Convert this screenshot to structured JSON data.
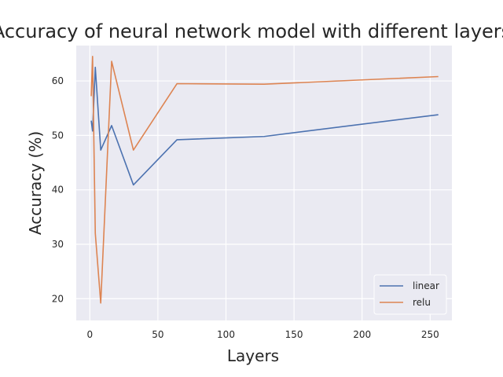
{
  "chart_data": {
    "type": "line",
    "title": "Accuracy of neural network model with different layers",
    "xlabel": "Layers",
    "ylabel": "Accuracy (%)",
    "xlim": [
      -10,
      266
    ],
    "ylim": [
      16,
      66.5
    ],
    "xticks": [
      0,
      50,
      100,
      150,
      200,
      250
    ],
    "yticks": [
      20,
      30,
      40,
      50,
      60
    ],
    "grid": true,
    "legend_position": "lower-right",
    "series": [
      {
        "name": "linear",
        "color": "#4c72b0",
        "x": [
          1,
          2,
          4,
          8,
          16,
          32,
          64,
          128,
          256
        ],
        "y": [
          52.7,
          50.8,
          62.5,
          47.3,
          51.8,
          40.9,
          49.2,
          49.8,
          53.8
        ]
      },
      {
        "name": "relu",
        "color": "#dd8452",
        "x": [
          1,
          2,
          4,
          8,
          16,
          32,
          64,
          128,
          256
        ],
        "y": [
          57.2,
          64.5,
          32.0,
          19.2,
          63.6,
          47.3,
          59.5,
          59.4,
          60.8
        ]
      }
    ]
  }
}
